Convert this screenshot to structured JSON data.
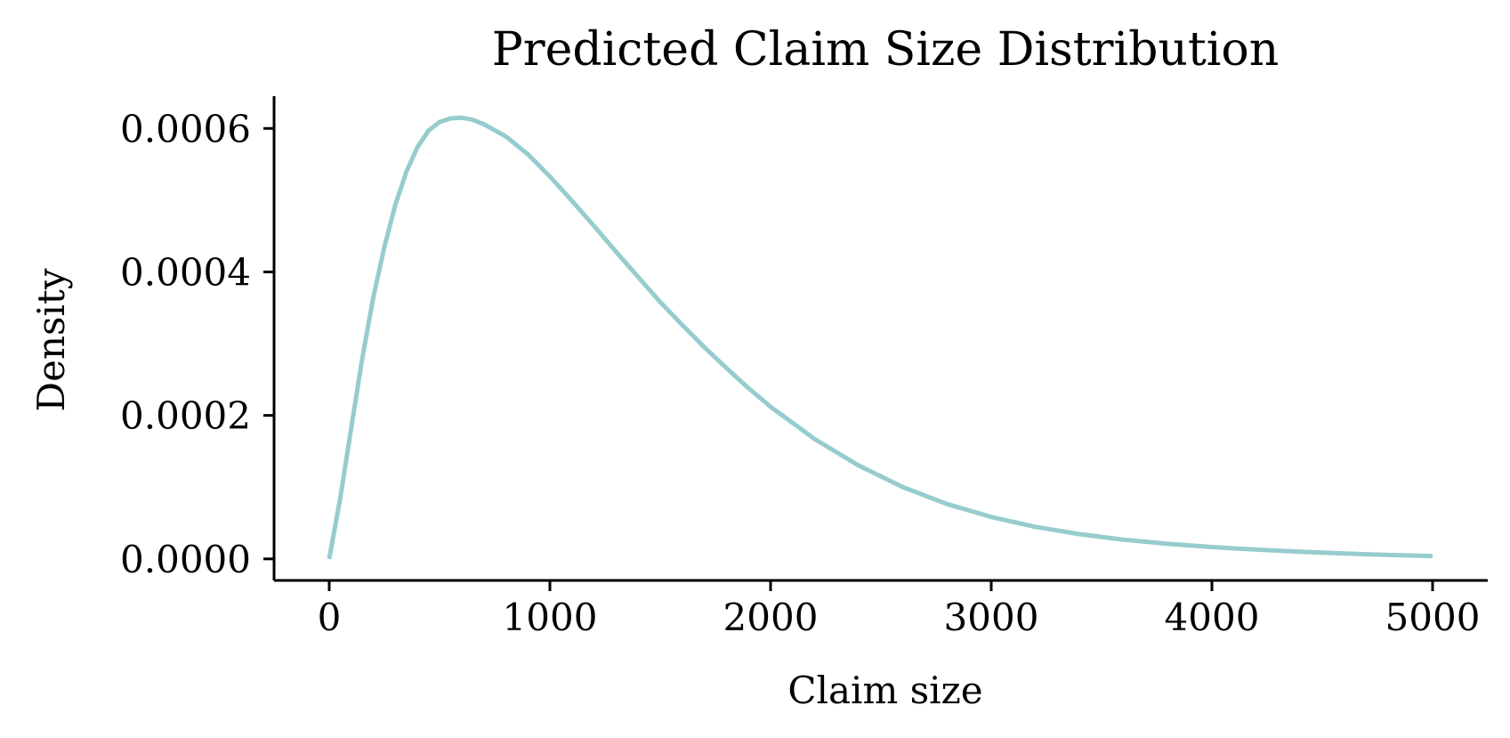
{
  "chart_data": {
    "type": "line",
    "title": "Predicted Claim Size Distribution",
    "xlabel": "Claim size",
    "ylabel": "Density",
    "xlim": [
      -250,
      5250
    ],
    "ylim": [
      -3e-05,
      0.000645
    ],
    "xticks": [
      0,
      1000,
      2000,
      3000,
      4000,
      5000
    ],
    "xtick_labels": [
      "0",
      "1000",
      "2000",
      "3000",
      "4000",
      "5000"
    ],
    "yticks": [
      0,
      0.0002,
      0.0004,
      0.0006
    ],
    "ytick_labels": [
      "0.0000",
      "0.0002",
      "0.0004",
      "0.0006"
    ],
    "grid": false,
    "series": [
      {
        "color": "#96cccd",
        "x": [
          0,
          50,
          100,
          150,
          200,
          250,
          300,
          350,
          400,
          450,
          500,
          550,
          600,
          650,
          700,
          800,
          900,
          1000,
          1100,
          1200,
          1300,
          1400,
          1500,
          1600,
          1700,
          1800,
          1900,
          2000,
          2200,
          2400,
          2600,
          2800,
          3000,
          3200,
          3400,
          3600,
          3800,
          4000,
          4200,
          4400,
          4600,
          4800,
          5000
        ],
        "y": [
          0.0,
          8.5e-05,
          0.000183,
          0.00028,
          0.000365,
          0.000435,
          0.000494,
          0.00054,
          0.000574,
          0.000597,
          0.000609,
          0.000614,
          0.000615,
          0.000612,
          0.000606,
          0.000589,
          0.000564,
          0.000533,
          0.000499,
          0.000464,
          0.000428,
          0.000393,
          0.000358,
          0.000326,
          0.000295,
          0.000266,
          0.000238,
          0.000212,
          0.000167,
          0.00013,
          0.0001,
          7.65e-05,
          5.85e-05,
          4.47e-05,
          3.45e-05,
          2.68e-05,
          2.1e-05,
          1.65e-05,
          1.3e-05,
          1e-05,
          7.5e-06,
          5.5e-06,
          4e-06
        ]
      }
    ]
  }
}
